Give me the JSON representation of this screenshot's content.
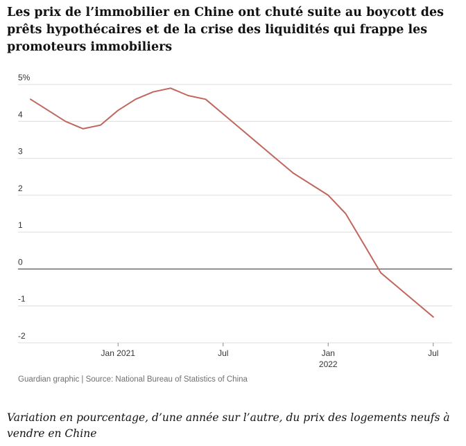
{
  "headline": "Les prix de l’immobilier en Chine ont chuté suite au boycott des prêts hypothécaires et de la crise des liquidités qui frappe les promoteurs immobiliers",
  "source": "Guardian graphic | Source: National Bureau of Statistics of China",
  "caption": "Variation en pourcentage, d’une année sur l’autre, du prix des logements neufs à vendre en Chine",
  "colors": {
    "line": "#c0665c",
    "grid": "#dcdcdc",
    "zero": "#444444"
  },
  "chart_data": {
    "type": "line",
    "title": "",
    "xlabel": "",
    "ylabel": "",
    "ylim": [
      -2,
      5
    ],
    "xlim": [
      "2020-07",
      "2022-08"
    ],
    "y_ticks": [
      {
        "value": -2,
        "label": "-2"
      },
      {
        "value": -1,
        "label": "-1"
      },
      {
        "value": 0,
        "label": "0"
      },
      {
        "value": 1,
        "label": "1"
      },
      {
        "value": 2,
        "label": "2"
      },
      {
        "value": 3,
        "label": "3"
      },
      {
        "value": 4,
        "label": "4"
      },
      {
        "value": 5,
        "label": "5%"
      }
    ],
    "x_ticks": [
      {
        "date": "2021-01",
        "label": "Jan 2021"
      },
      {
        "date": "2021-07",
        "label": "Jul"
      },
      {
        "date": "2022-01",
        "label": "Jan",
        "sublabel": "2022"
      },
      {
        "date": "2022-07",
        "label": "Jul"
      }
    ],
    "grid": true,
    "series": [
      {
        "x": [
          "2020-08",
          "2020-09",
          "2020-10",
          "2020-11",
          "2020-12",
          "2021-01",
          "2021-02",
          "2021-03",
          "2021-04",
          "2021-05",
          "2021-06",
          "2021-07",
          "2021-08",
          "2021-09",
          "2021-10",
          "2021-11",
          "2021-12",
          "2022-01",
          "2022-02",
          "2022-03",
          "2022-04",
          "2022-05",
          "2022-06",
          "2022-07",
          "2022-08"
        ],
        "values": [
          4.6,
          4.3,
          4.0,
          3.8,
          3.9,
          4.3,
          4.6,
          4.8,
          4.9,
          4.7,
          4.6,
          4.2,
          3.8,
          3.4,
          3.0,
          2.6,
          2.3,
          2.0,
          1.5,
          0.7,
          -0.1,
          -0.5,
          -0.9,
          -1.3,
          null
        ]
      }
    ]
  }
}
